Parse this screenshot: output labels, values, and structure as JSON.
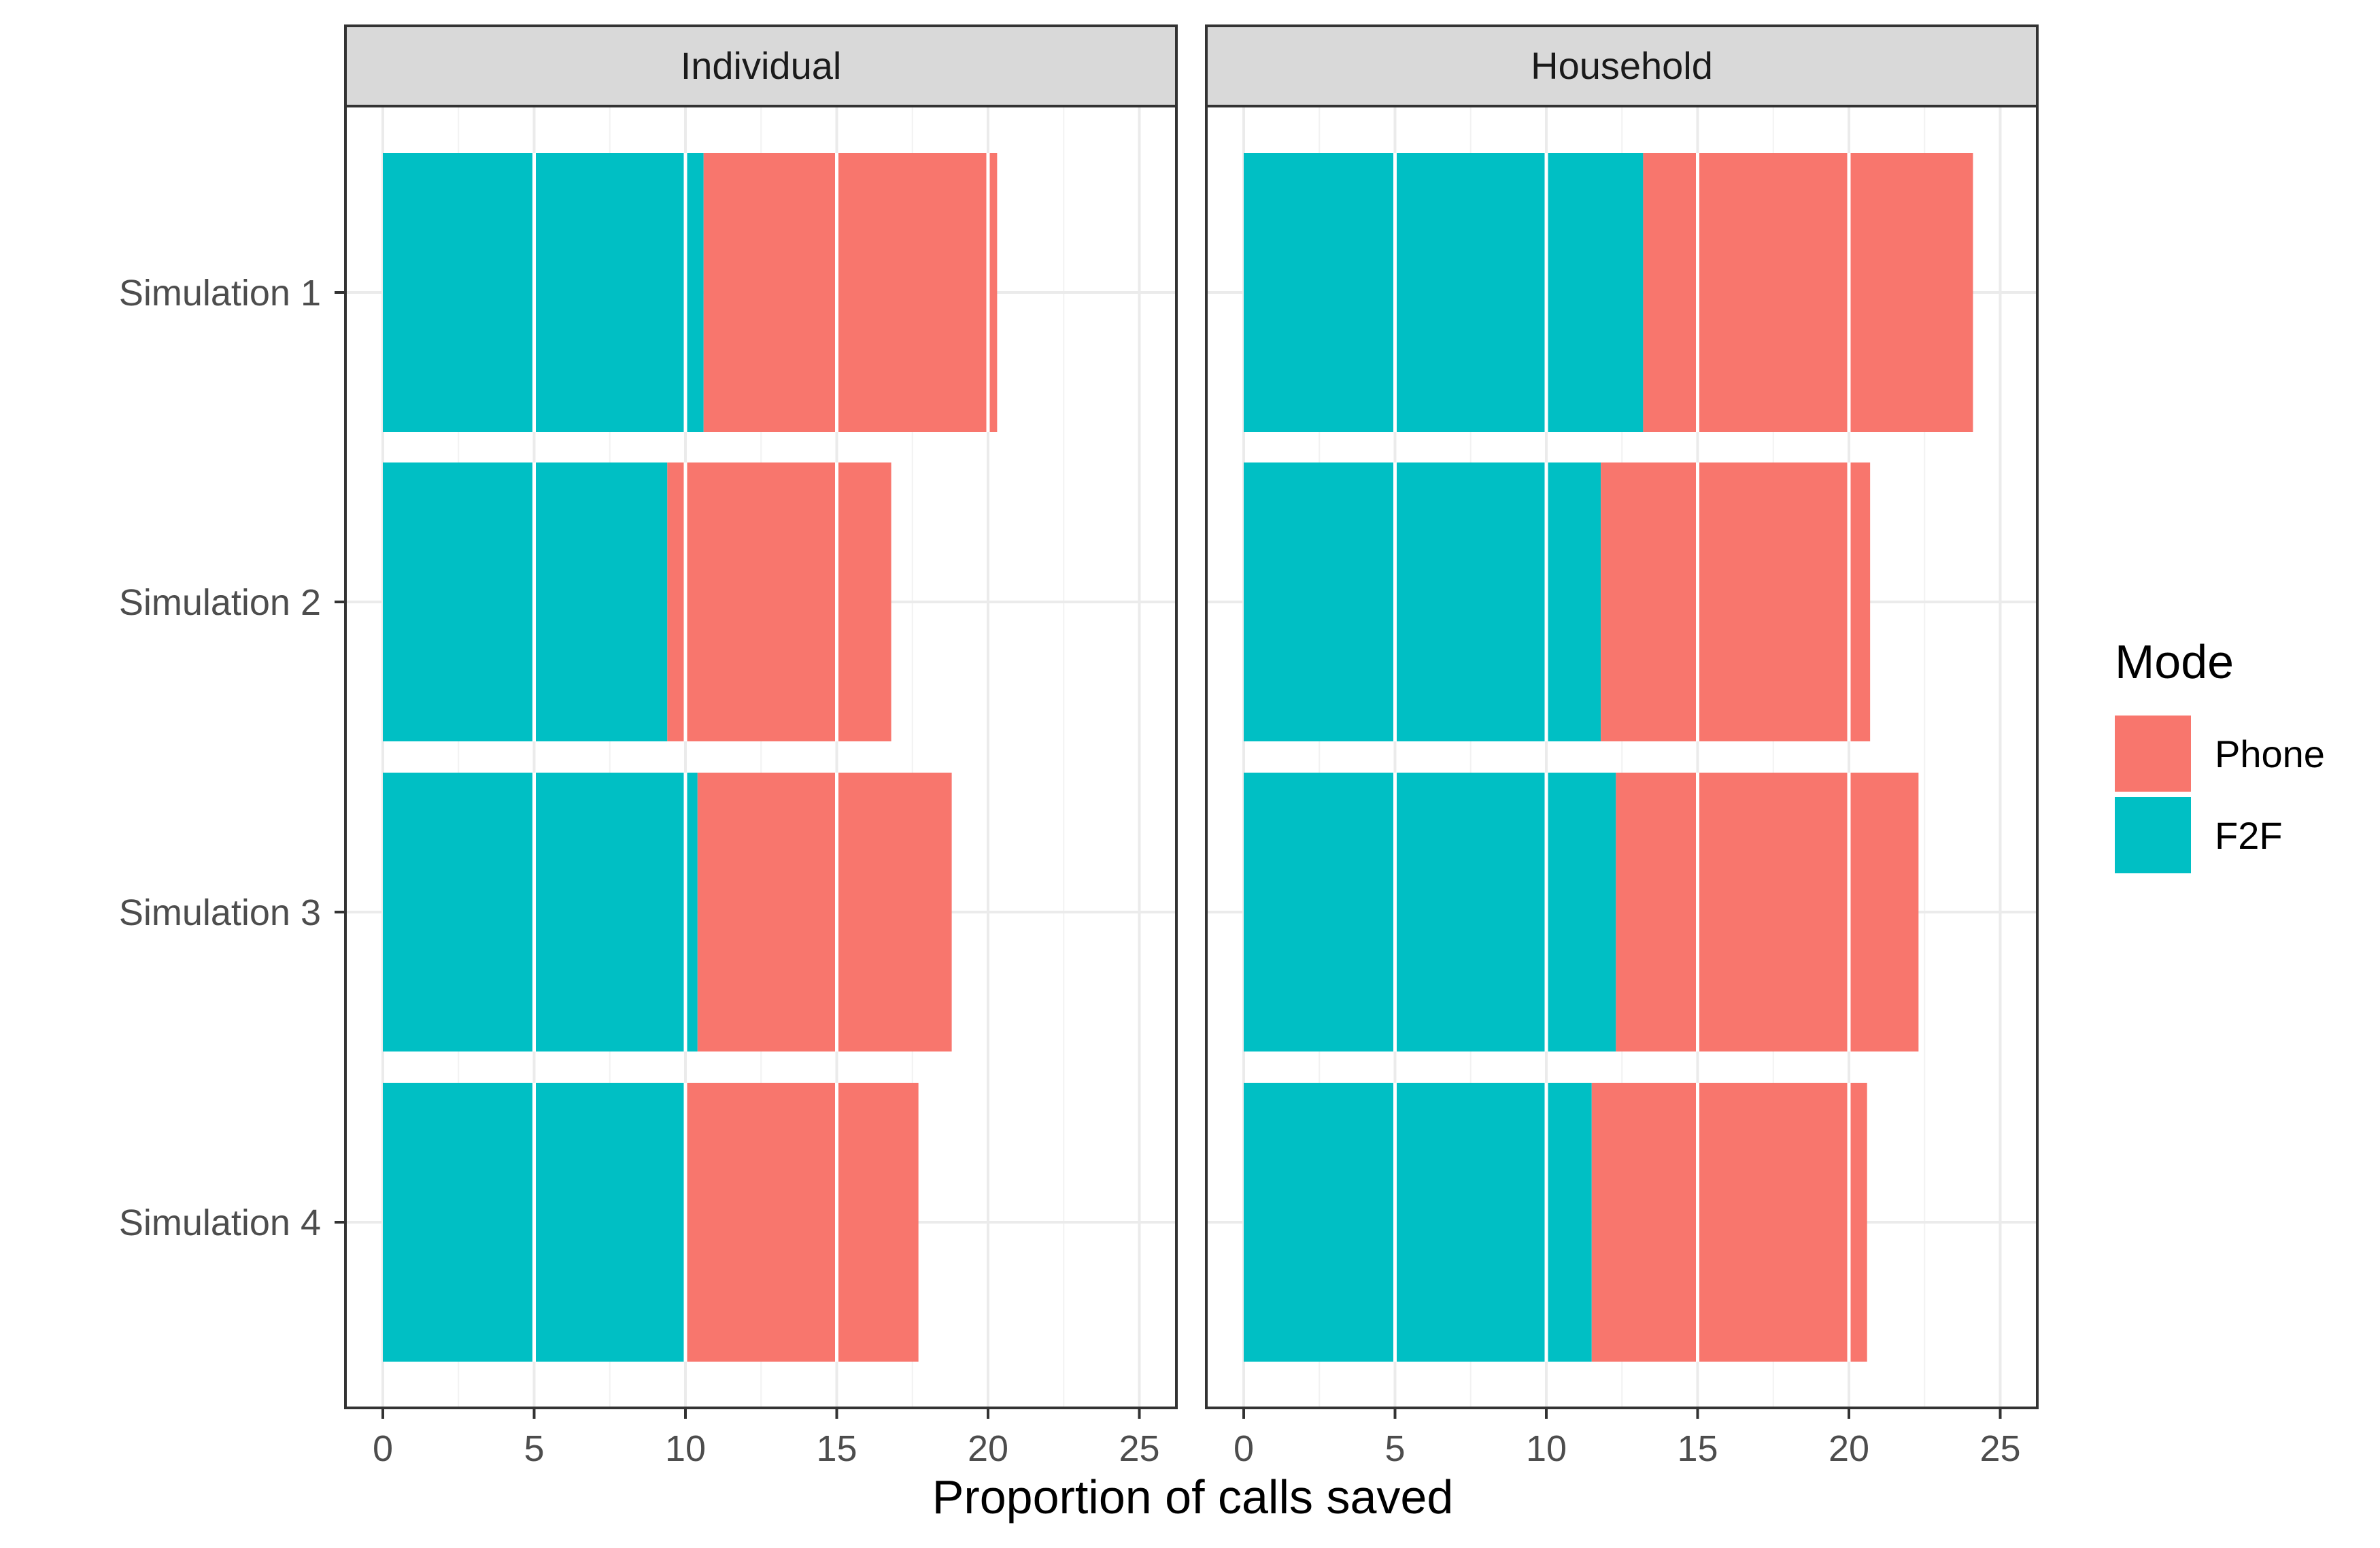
{
  "chart_data": {
    "type": "bar",
    "orientation": "horizontal",
    "stacked": true,
    "categories": [
      "Simulation 1",
      "Simulation 2",
      "Simulation 3",
      "Simulation 4"
    ],
    "xlabel": "Proportion of calls saved",
    "ylabel": "",
    "xlim": [
      0,
      25
    ],
    "x_ticks": [
      0,
      5,
      10,
      15,
      20,
      25
    ],
    "grid": true,
    "legend": {
      "title": "Mode",
      "position": "right",
      "entries": [
        {
          "name": "Phone",
          "color": "#F8766D"
        },
        {
          "name": "F2F",
          "color": "#00BFC4"
        }
      ]
    },
    "facets": [
      {
        "label": "Individual",
        "series": [
          {
            "name": "F2F",
            "color": "#00BFC4",
            "values": [
              10.6,
              9.4,
              10.4,
              10.0
            ]
          },
          {
            "name": "Phone",
            "color": "#F8766D",
            "values": [
              9.7,
              7.4,
              8.4,
              7.7
            ]
          }
        ]
      },
      {
        "label": "Household",
        "series": [
          {
            "name": "F2F",
            "color": "#00BFC4",
            "values": [
              13.2,
              11.8,
              12.3,
              11.5
            ]
          },
          {
            "name": "Phone",
            "color": "#F8766D",
            "values": [
              10.9,
              8.9,
              10.0,
              9.1
            ]
          }
        ]
      }
    ]
  }
}
